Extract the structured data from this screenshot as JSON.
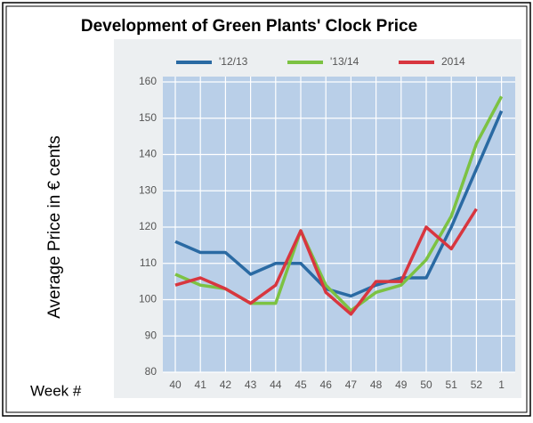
{
  "chart_data": {
    "type": "line",
    "title": "Development of Green Plants' Clock Price",
    "y_label": "Average Price in € cents",
    "x_label": "Week #",
    "categories": [
      "40",
      "41",
      "42",
      "43",
      "44",
      "45",
      "46",
      "47",
      "48",
      "49",
      "50",
      "51",
      "52",
      "1"
    ],
    "series": [
      {
        "name": "'12/13",
        "color": "#2a6aa3",
        "values": [
          116,
          113,
          113,
          107,
          110,
          110,
          103,
          101,
          104,
          106,
          106,
          120,
          136,
          152
        ]
      },
      {
        "name": "'13/14",
        "color": "#7cc242",
        "values": [
          107,
          104,
          103,
          99,
          99,
          119,
          104,
          97,
          102,
          104,
          111,
          123,
          143,
          156
        ]
      },
      {
        "name": "2014",
        "color": "#d8363f",
        "values": [
          104,
          106,
          103,
          99,
          104,
          119,
          102,
          96,
          105,
          105,
          120,
          114,
          125,
          null
        ]
      }
    ],
    "ylim": [
      80,
      160
    ],
    "yticks": [
      80,
      90,
      100,
      110,
      120,
      130,
      140,
      150,
      160
    ],
    "grid": true,
    "legend": "top"
  }
}
